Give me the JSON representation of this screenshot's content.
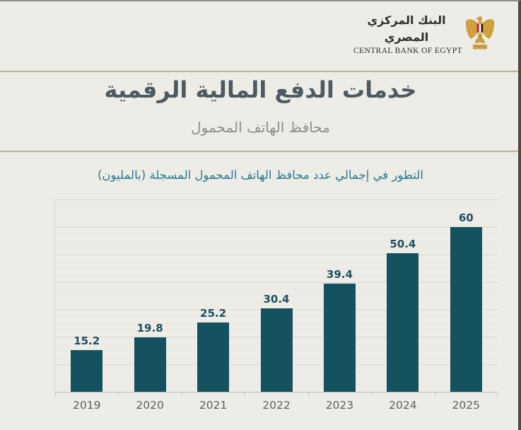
{
  "page": {
    "background": "#edece6",
    "divider_color": "#c9b287"
  },
  "header": {
    "logo": {
      "arabic_name": "البنك المركزي المصري",
      "english_name": "CENTRAL BANK OF EGYPT",
      "eagle_icon": "egypt-eagle-emblem",
      "eagle_colors": {
        "gold": "#d7a63f",
        "dark_gold": "#a97e2a",
        "red": "#ce1126",
        "white": "#ffffff",
        "black": "#1a1a1a"
      }
    }
  },
  "title_block": {
    "title": "خدمات الدفع  المالية الرقمية",
    "subtitle": "محافظ الهاتف المحمول",
    "title_color": "#4e5a63",
    "subtitle_color": "#8e8e8a"
  },
  "chart_data": {
    "type": "bar",
    "title": "التطور في إجمالي عدد محافظ الهاتف المحمول المسجلة (بالمليون)",
    "categories": [
      "2019",
      "2020",
      "2021",
      "2022",
      "2023",
      "2024",
      "2025"
    ],
    "values": [
      15.2,
      19.8,
      25.2,
      30.4,
      39.4,
      50.4,
      60
    ],
    "xlabel": "",
    "ylabel": "",
    "ylim": [
      0,
      70
    ],
    "grid": true,
    "grid_major_interval": 10,
    "grid_minor_interval": 2.5,
    "legend": false,
    "bar_color": "#15525f",
    "value_label_color": "#1d4f63",
    "axis_label_color": "#62605b",
    "gridline_major_color": "#dad9d2",
    "gridline_minor_color": "#e7e6e0",
    "baseline_color": "#bfbeb8",
    "title_color": "#2a7a90"
  }
}
